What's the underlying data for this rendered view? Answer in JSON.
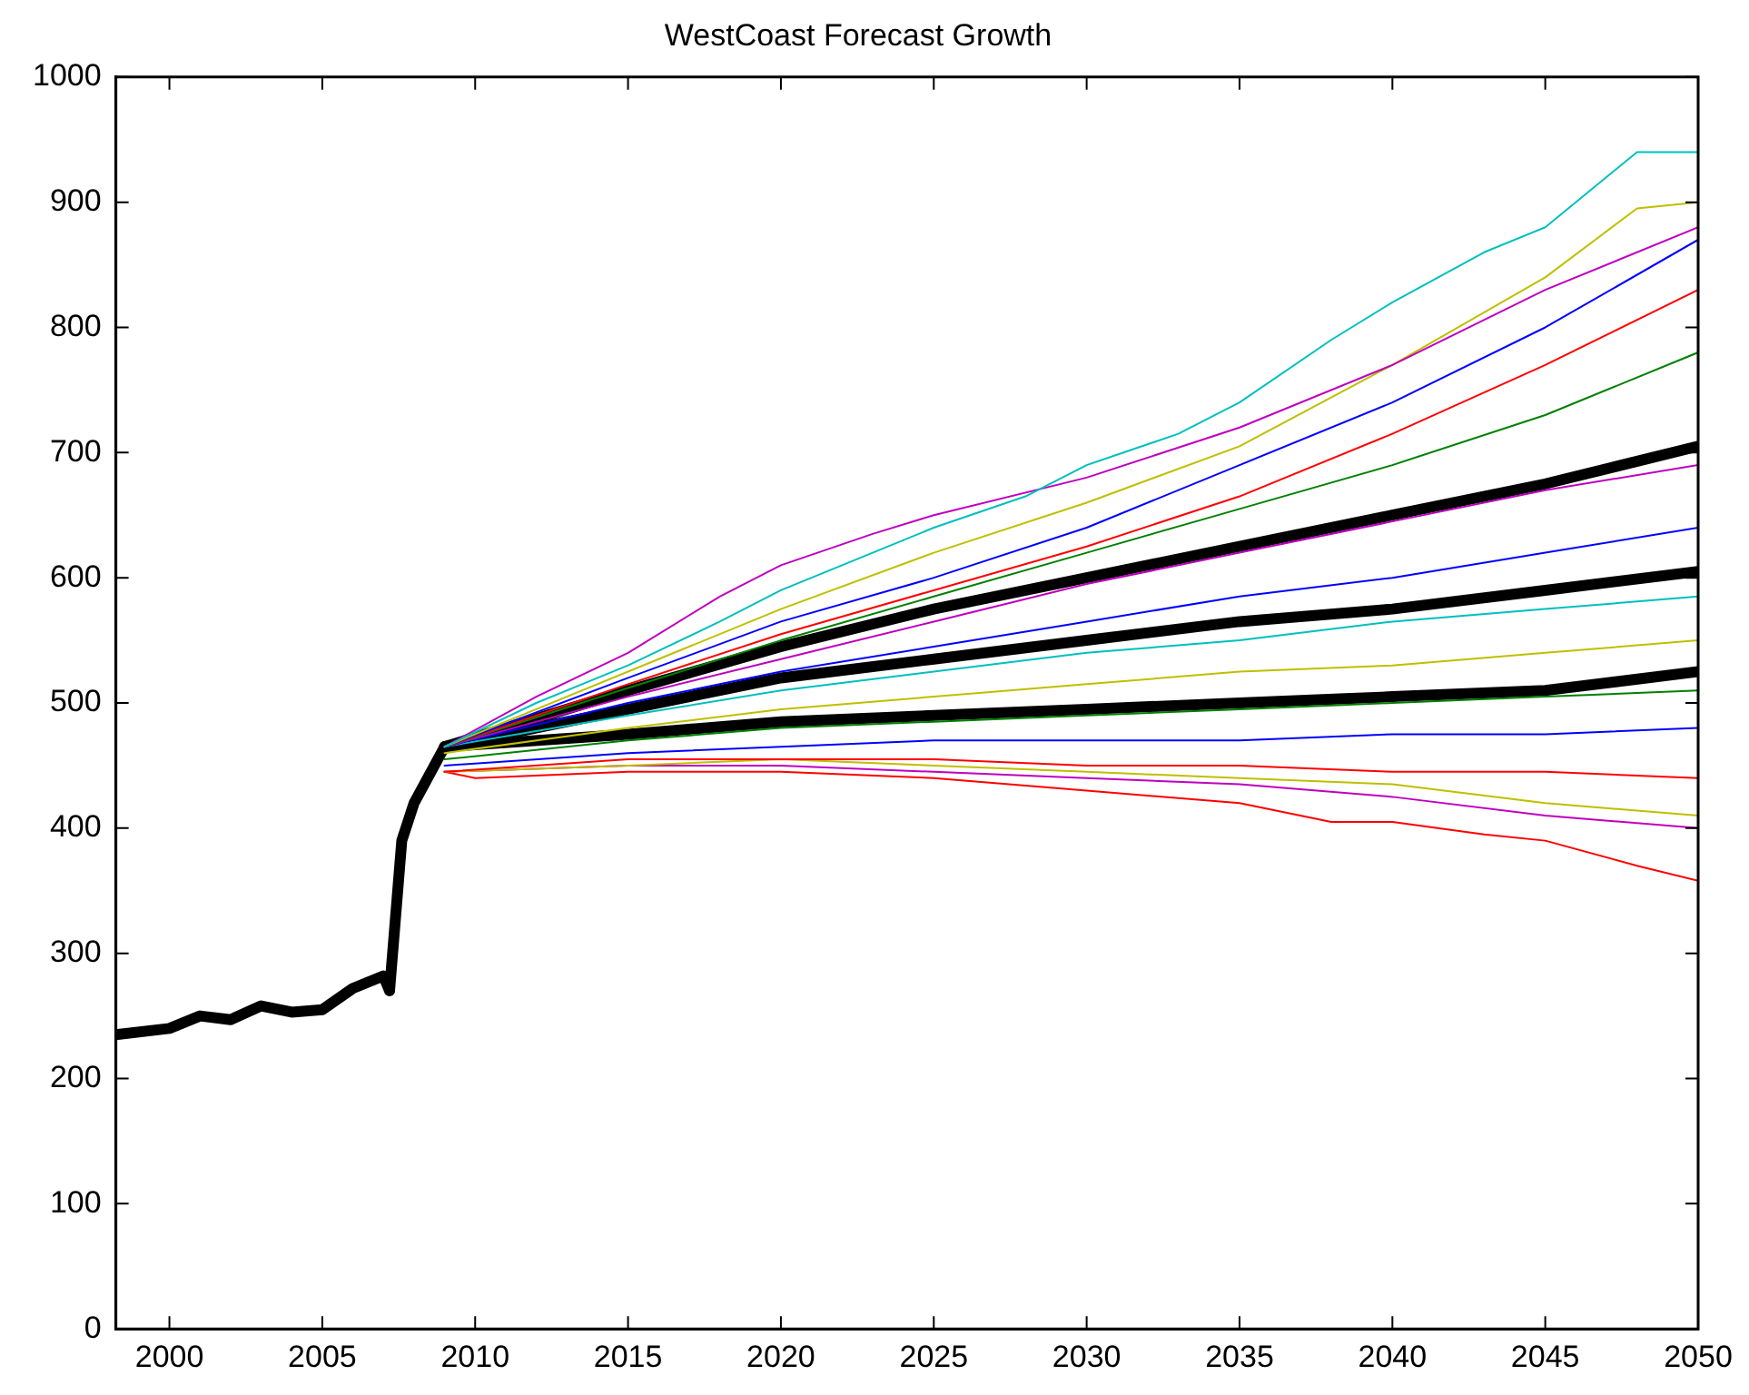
{
  "chart_data": {
    "type": "line",
    "title": "WestCoast Forecast Growth",
    "xlim": [
      1998.25,
      2050
    ],
    "xticks": [
      2000,
      2005,
      2010,
      2015,
      2020,
      2025,
      2030,
      2035,
      2040,
      2045,
      2050
    ],
    "ylim": [
      0,
      1000
    ],
    "yticks": [
      0,
      100,
      200,
      300,
      400,
      500,
      600,
      700,
      800,
      900,
      1000
    ],
    "grid": false,
    "legend": false,
    "marker": "none",
    "line_style": "solid",
    "series": [
      {
        "color": "#00bfbf",
        "x": [
          2009,
          2012,
          2015,
          2018,
          2020,
          2023,
          2025,
          2028,
          2030,
          2033,
          2035,
          2038,
          2040,
          2043,
          2045,
          2048,
          2050
        ],
        "values": [
          465,
          500,
          530,
          565,
          590,
          620,
          640,
          665,
          690,
          715,
          740,
          790,
          820,
          860,
          880,
          940,
          940
        ]
      },
      {
        "color": "#bf00bf",
        "x": [
          2009,
          2012,
          2015,
          2018,
          2020,
          2023,
          2025,
          2030,
          2035,
          2040,
          2045,
          2050
        ],
        "values": [
          465,
          505,
          540,
          585,
          610,
          635,
          650,
          680,
          720,
          770,
          830,
          880
        ]
      },
      {
        "color": "#bfbf00",
        "x": [
          2009,
          2015,
          2020,
          2025,
          2030,
          2035,
          2040,
          2045,
          2048,
          2050
        ],
        "values": [
          465,
          525,
          575,
          620,
          660,
          705,
          770,
          840,
          895,
          900
        ]
      },
      {
        "color": "#0000ff",
        "x": [
          2009,
          2015,
          2020,
          2025,
          2030,
          2035,
          2040,
          2045,
          2050
        ],
        "values": [
          465,
          520,
          565,
          600,
          640,
          690,
          740,
          800,
          870
        ]
      },
      {
        "color": "#ff0000",
        "x": [
          2009,
          2015,
          2020,
          2025,
          2030,
          2035,
          2040,
          2045,
          2050
        ],
        "values": [
          465,
          515,
          555,
          590,
          625,
          665,
          715,
          770,
          830
        ]
      },
      {
        "color": "#008000",
        "x": [
          2009,
          2015,
          2020,
          2025,
          2030,
          2035,
          2040,
          2045,
          2050
        ],
        "values": [
          465,
          512,
          550,
          585,
          620,
          655,
          690,
          730,
          780
        ]
      },
      {
        "color": "#bf00bf",
        "x": [
          2009,
          2015,
          2020,
          2025,
          2030,
          2035,
          2040,
          2045,
          2050
        ],
        "values": [
          465,
          505,
          535,
          565,
          595,
          620,
          645,
          670,
          690
        ]
      },
      {
        "color": "#0000ff",
        "x": [
          2009,
          2015,
          2020,
          2025,
          2030,
          2035,
          2040,
          2045,
          2050
        ],
        "values": [
          465,
          500,
          525,
          545,
          565,
          585,
          600,
          620,
          640
        ]
      },
      {
        "color": "#00bfbf",
        "x": [
          2009,
          2015,
          2020,
          2025,
          2030,
          2035,
          2040,
          2045,
          2050
        ],
        "values": [
          465,
          490,
          510,
          525,
          540,
          550,
          565,
          575,
          585
        ]
      },
      {
        "color": "#bfbf00",
        "x": [
          2009,
          2015,
          2020,
          2025,
          2030,
          2035,
          2040,
          2045,
          2050
        ],
        "values": [
          460,
          480,
          495,
          505,
          515,
          525,
          530,
          540,
          550
        ]
      },
      {
        "color": "#008000",
        "x": [
          2009,
          2015,
          2020,
          2025,
          2030,
          2035,
          2040,
          2045,
          2050
        ],
        "values": [
          455,
          470,
          480,
          485,
          490,
          495,
          500,
          505,
          510
        ]
      },
      {
        "color": "#0000ff",
        "x": [
          2009,
          2015,
          2020,
          2025,
          2030,
          2035,
          2040,
          2045,
          2050
        ],
        "values": [
          450,
          460,
          465,
          470,
          470,
          470,
          475,
          475,
          480
        ]
      },
      {
        "color": "#ff0000",
        "x": [
          2009,
          2015,
          2020,
          2025,
          2030,
          2035,
          2040,
          2045,
          2050
        ],
        "values": [
          445,
          455,
          455,
          455,
          450,
          450,
          445,
          445,
          440
        ]
      },
      {
        "color": "#bfbf00",
        "x": [
          2009,
          2015,
          2020,
          2025,
          2030,
          2035,
          2040,
          2045,
          2050
        ],
        "values": [
          445,
          450,
          455,
          450,
          445,
          440,
          435,
          420,
          410
        ]
      },
      {
        "color": "#bf00bf",
        "x": [
          2009,
          2015,
          2020,
          2025,
          2030,
          2035,
          2040,
          2045,
          2050
        ],
        "values": [
          445,
          450,
          450,
          445,
          440,
          435,
          425,
          410,
          400
        ]
      },
      {
        "color": "#ff0000",
        "x": [
          2009,
          2010,
          2015,
          2020,
          2025,
          2030,
          2035,
          2038,
          2040,
          2043,
          2045,
          2048,
          2050
        ],
        "values": [
          445,
          440,
          445,
          445,
          440,
          430,
          420,
          405,
          405,
          395,
          390,
          370,
          358
        ]
      },
      {
        "color": "#000000",
        "x": [
          2009,
          2015,
          2020,
          2025,
          2030,
          2035,
          2040,
          2045,
          2050
        ],
        "values": [
          465,
          510,
          545,
          575,
          600,
          625,
          650,
          675,
          705
        ]
      },
      {
        "color": "#000000",
        "x": [
          2009,
          2015,
          2020,
          2025,
          2030,
          2035,
          2040,
          2045,
          2050
        ],
        "values": [
          465,
          495,
          520,
          535,
          550,
          565,
          575,
          590,
          605
        ]
      },
      {
        "color": "#000000",
        "x": [
          2009,
          2015,
          2020,
          2025,
          2030,
          2035,
          2040,
          2045,
          2050
        ],
        "values": [
          465,
          475,
          485,
          490,
          495,
          500,
          505,
          510,
          525
        ]
      },
      {
        "color": "#000000",
        "x": [
          1998.25,
          2000,
          2001,
          2002,
          2003,
          2004,
          2005,
          2006,
          2007,
          2007.2,
          2007.6,
          2008,
          2009
        ],
        "values": [
          235,
          240,
          250,
          247,
          258,
          253,
          255,
          272,
          282,
          270,
          390,
          420,
          465
        ]
      }
    ]
  }
}
